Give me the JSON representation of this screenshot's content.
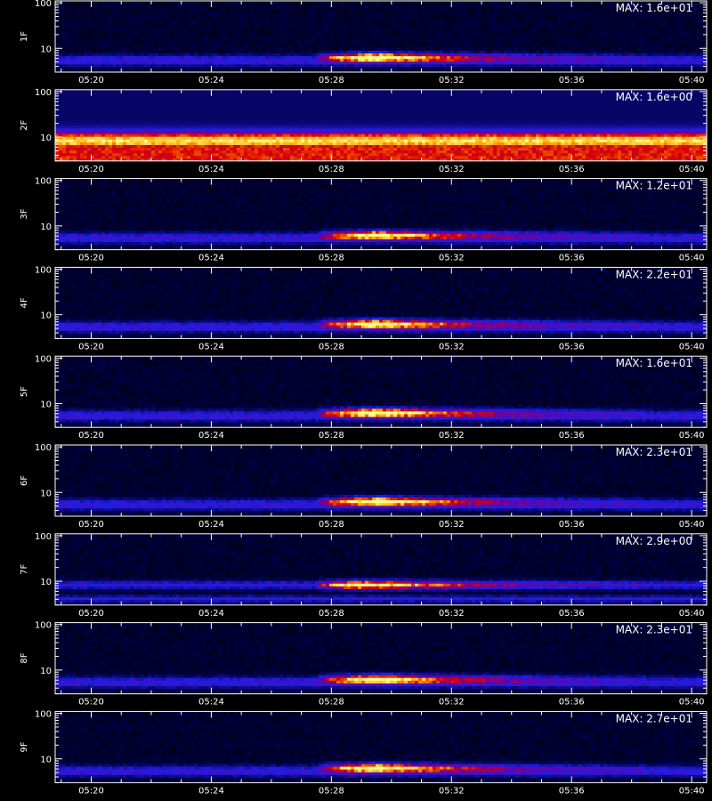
{
  "chart_data": [
    {
      "type": "heatmap",
      "panel_label": "1F",
      "max_label": "MAX: 1.6e+01",
      "yticks": [
        "100",
        "10"
      ],
      "xticks": [
        "05:20",
        "05:24",
        "05:28",
        "05:32",
        "05:36",
        "05:40"
      ],
      "ylim": [
        3,
        110
      ],
      "x_range": [
        "05:18:48",
        "05:40:30"
      ],
      "y_scale": "log",
      "background": "lowband",
      "event": {
        "start": "05:27:30",
        "peak": "05:29:30",
        "end": "05:38:30",
        "energy_center": 6.5,
        "peak_level": 1.0
      }
    },
    {
      "type": "heatmap",
      "panel_label": "2F",
      "max_label": "MAX: 1.6e+00",
      "yticks": [
        "100",
        "10"
      ],
      "xticks": [
        "05:20",
        "05:24",
        "05:28",
        "05:32",
        "05:36",
        "05:40"
      ],
      "ylim": [
        3,
        110
      ],
      "x_range": [
        "05:18:48",
        "05:40:30"
      ],
      "y_scale": "log",
      "background": "saturated",
      "event": null
    },
    {
      "type": "heatmap",
      "panel_label": "3F",
      "max_label": "MAX: 1.2e+01",
      "yticks": [
        "100",
        "10"
      ],
      "xticks": [
        "05:20",
        "05:24",
        "05:28",
        "05:32",
        "05:36",
        "05:40"
      ],
      "ylim": [
        3,
        110
      ],
      "x_range": [
        "05:18:48",
        "05:40:30"
      ],
      "y_scale": "log",
      "background": "lowband",
      "event": {
        "start": "05:27:30",
        "peak": "05:29:30",
        "end": "05:38:30",
        "energy_center": 6.5,
        "peak_level": 0.9
      }
    },
    {
      "type": "heatmap",
      "panel_label": "4F",
      "max_label": "MAX: 2.2e+01",
      "yticks": [
        "100",
        "10"
      ],
      "xticks": [
        "05:20",
        "05:24",
        "05:28",
        "05:32",
        "05:36",
        "05:40"
      ],
      "ylim": [
        3,
        110
      ],
      "x_range": [
        "05:18:48",
        "05:40:30"
      ],
      "y_scale": "log",
      "background": "lowband",
      "event": {
        "start": "05:27:30",
        "peak": "05:29:30",
        "end": "05:38:30",
        "energy_center": 6.5,
        "peak_level": 0.95
      }
    },
    {
      "type": "heatmap",
      "panel_label": "5F",
      "max_label": "MAX: 1.6e+01",
      "yticks": [
        "100",
        "10"
      ],
      "xticks": [
        "05:20",
        "05:24",
        "05:28",
        "05:32",
        "05:36",
        "05:40"
      ],
      "ylim": [
        3,
        110
      ],
      "x_range": [
        "05:18:48",
        "05:40:30"
      ],
      "y_scale": "log",
      "background": "lowband",
      "event": {
        "start": "05:27:30",
        "peak": "05:29:30",
        "end": "05:38:30",
        "energy_center": 6.5,
        "peak_level": 1.0
      }
    },
    {
      "type": "heatmap",
      "panel_label": "6F",
      "max_label": "MAX: 2.3e+01",
      "yticks": [
        "100",
        "10"
      ],
      "xticks": [
        "05:20",
        "05:24",
        "05:28",
        "05:32",
        "05:36",
        "05:40"
      ],
      "ylim": [
        3,
        110
      ],
      "x_range": [
        "05:18:48",
        "05:40:30"
      ],
      "y_scale": "log",
      "background": "lowband",
      "event": {
        "start": "05:27:30",
        "peak": "05:29:30",
        "end": "05:38:30",
        "energy_center": 6.5,
        "peak_level": 1.0
      }
    },
    {
      "type": "heatmap",
      "panel_label": "7F",
      "max_label": "MAX: 2.9e+00",
      "yticks": [
        "100",
        "10"
      ],
      "xticks": [
        "05:20",
        "05:24",
        "05:28",
        "05:32",
        "05:36",
        "05:40"
      ],
      "ylim": [
        3,
        110
      ],
      "x_range": [
        "05:18:48",
        "05:40:30"
      ],
      "y_scale": "log",
      "background": "doubleband",
      "event": {
        "start": "05:27:30",
        "peak": "05:29:00",
        "end": "05:38:30",
        "energy_center": 8.5,
        "peak_level": 0.85
      }
    },
    {
      "type": "heatmap",
      "panel_label": "8F",
      "max_label": "MAX: 2.3e+01",
      "yticks": [
        "100",
        "10"
      ],
      "xticks": [
        "05:20",
        "05:24",
        "05:28",
        "05:32",
        "05:36",
        "05:40"
      ],
      "ylim": [
        3,
        110
      ],
      "x_range": [
        "05:18:48",
        "05:40:30"
      ],
      "y_scale": "log",
      "background": "lowband",
      "event": {
        "start": "05:27:30",
        "peak": "05:29:30",
        "end": "05:38:30",
        "energy_center": 6.5,
        "peak_level": 0.95
      }
    },
    {
      "type": "heatmap",
      "panel_label": "9F",
      "max_label": "MAX: 2.7e+01",
      "yticks": [
        "100",
        "10"
      ],
      "xticks": [
        "05:20",
        "05:24",
        "05:28",
        "05:32",
        "05:36",
        "05:40"
      ],
      "ylim": [
        3,
        110
      ],
      "x_range": [
        "05:18:48",
        "05:40:30"
      ],
      "y_scale": "log",
      "background": "lowband",
      "event": {
        "start": "05:27:30",
        "peak": "05:29:30",
        "end": "05:38:30",
        "energy_center": 6.5,
        "peak_level": 0.95
      }
    }
  ],
  "colors": {
    "low": "#1010d0",
    "mid": "#e01010",
    "high": "#ffff40",
    "frame": "#ffffff"
  }
}
